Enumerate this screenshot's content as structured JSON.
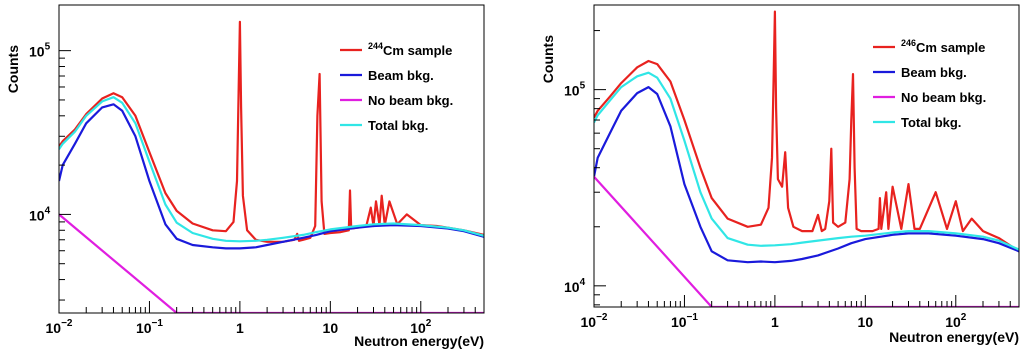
{
  "chart_data": [
    {
      "type": "line",
      "title": "",
      "xlabel": "Neutron energy(eV)",
      "ylabel": "Counts",
      "log_x": true,
      "log_y": true,
      "xlim": [
        0.01,
        500
      ],
      "ylim": [
        2500,
        190000
      ],
      "x_ticks": [
        {
          "v": 0.01,
          "label": "10",
          "exp": "−2"
        },
        {
          "v": 0.1,
          "label": "10",
          "exp": "−1"
        },
        {
          "v": 1,
          "label": "1",
          "exp": ""
        },
        {
          "v": 10,
          "label": "10",
          "exp": ""
        },
        {
          "v": 100,
          "label": "10",
          "exp": "2"
        }
      ],
      "y_ticks": [
        {
          "v": 10000,
          "label": "10",
          "exp": "4"
        },
        {
          "v": 100000,
          "label": "10",
          "exp": "5"
        }
      ],
      "grid": false,
      "legend_position": "top-right",
      "series": [
        {
          "name": "Cm sample",
          "name_sup": "244",
          "color": "#e8221f",
          "x": [
            0.01,
            0.011,
            0.015,
            0.02,
            0.03,
            0.04,
            0.05,
            0.07,
            0.1,
            0.15,
            0.2,
            0.3,
            0.5,
            0.7,
            0.85,
            0.93,
            0.97,
            1.0,
            1.03,
            1.08,
            1.2,
            1.5,
            2,
            3,
            4,
            4.3,
            4.5,
            5,
            6,
            6.8,
            7.2,
            7.6,
            8.0,
            8.6,
            10,
            13,
            16,
            16.5,
            17,
            20,
            25,
            28,
            30,
            32,
            35,
            37,
            40,
            45,
            55,
            70,
            100,
            150,
            200,
            300,
            500
          ],
          "y": [
            26000,
            28000,
            33000,
            41000,
            51000,
            55000,
            52000,
            40000,
            24000,
            13500,
            10500,
            8800,
            8000,
            7900,
            9000,
            16000,
            60000,
            150000,
            45000,
            13000,
            8000,
            7000,
            6800,
            6800,
            7000,
            7600,
            6900,
            7000,
            7200,
            8500,
            40000,
            72000,
            12000,
            7600,
            7700,
            7800,
            8000,
            14000,
            8200,
            8300,
            8500,
            11000,
            8500,
            12000,
            8600,
            13000,
            8600,
            12000,
            8700,
            10000,
            8600,
            8500,
            8300,
            8000,
            7500
          ]
        },
        {
          "name": "Beam bkg.",
          "color": "#1a1adb",
          "x": [
            0.01,
            0.011,
            0.015,
            0.02,
            0.03,
            0.04,
            0.05,
            0.07,
            0.1,
            0.15,
            0.2,
            0.3,
            0.5,
            0.7,
            1,
            1.5,
            2,
            3,
            5,
            7,
            10,
            20,
            30,
            50,
            100,
            200,
            300,
            500
          ],
          "y": [
            16000,
            20000,
            27000,
            36000,
            45000,
            47000,
            43000,
            30000,
            16000,
            8700,
            7100,
            6500,
            6300,
            6200,
            6200,
            6300,
            6500,
            6800,
            7200,
            7500,
            7900,
            8300,
            8500,
            8600,
            8500,
            8200,
            7900,
            7300
          ]
        },
        {
          "name": "No beam bkg.",
          "color": "#e01ee0",
          "x": [
            0.01,
            0.2,
            0.21,
            500
          ],
          "y": [
            10000,
            2500,
            2500,
            2500
          ]
        },
        {
          "name": "Total bkg.",
          "color": "#30e6e6",
          "x": [
            0.01,
            0.011,
            0.015,
            0.02,
            0.03,
            0.04,
            0.05,
            0.07,
            0.1,
            0.15,
            0.2,
            0.3,
            0.5,
            0.7,
            1,
            1.5,
            2,
            3,
            5,
            7,
            10,
            20,
            30,
            50,
            100,
            200,
            300,
            500
          ],
          "y": [
            25000,
            27000,
            32000,
            40000,
            49000,
            52000,
            48000,
            36000,
            21000,
            11500,
            8900,
            7700,
            7100,
            6900,
            6850,
            6900,
            7000,
            7200,
            7500,
            7800,
            8100,
            8500,
            8700,
            8800,
            8600,
            8300,
            8000,
            7400
          ]
        }
      ]
    },
    {
      "type": "line",
      "title": "",
      "xlabel": "Neutron energy(eV)",
      "ylabel": "Counts",
      "log_x": true,
      "log_y": true,
      "xlim": [
        0.01,
        500
      ],
      "ylim": [
        7800,
        270000
      ],
      "x_ticks": [
        {
          "v": 0.01,
          "label": "10",
          "exp": "−2"
        },
        {
          "v": 0.1,
          "label": "10",
          "exp": "−1"
        },
        {
          "v": 1,
          "label": "1",
          "exp": ""
        },
        {
          "v": 10,
          "label": "10",
          "exp": ""
        },
        {
          "v": 100,
          "label": "10",
          "exp": "2"
        }
      ],
      "y_ticks": [
        {
          "v": 10000,
          "label": "10",
          "exp": "4"
        },
        {
          "v": 100000,
          "label": "10",
          "exp": "5"
        }
      ],
      "grid": false,
      "legend_position": "top-right",
      "series": [
        {
          "name": "Cm sample",
          "name_sup": "246",
          "color": "#e8221f",
          "x": [
            0.01,
            0.011,
            0.015,
            0.02,
            0.03,
            0.04,
            0.05,
            0.07,
            0.1,
            0.15,
            0.2,
            0.3,
            0.5,
            0.7,
            0.85,
            0.93,
            0.97,
            1.0,
            1.03,
            1.08,
            1.2,
            1.3,
            1.4,
            1.6,
            2,
            2.6,
            3.0,
            3.3,
            3.6,
            4.0,
            4.2,
            4.4,
            5,
            6,
            6.7,
            7.0,
            7.3,
            7.6,
            8.0,
            9,
            12,
            14,
            14.5,
            15,
            17,
            18,
            20,
            25,
            30,
            35,
            40,
            60,
            80,
            100,
            120,
            150,
            200,
            300,
            500
          ],
          "y": [
            72000,
            78000,
            92000,
            108000,
            130000,
            140000,
            135000,
            110000,
            70000,
            40000,
            28000,
            22000,
            20000,
            20500,
            25000,
            45000,
            120000,
            250000,
            80000,
            35000,
            32000,
            48000,
            25000,
            20000,
            19000,
            19000,
            23000,
            19000,
            19500,
            27000,
            50000,
            21000,
            20000,
            21000,
            35000,
            70000,
            120000,
            40000,
            19500,
            19000,
            19000,
            19500,
            28000,
            19500,
            30000,
            19500,
            32000,
            19500,
            33000,
            19500,
            19500,
            30000,
            19500,
            27000,
            19000,
            22000,
            19000,
            17500,
            15000
          ]
        },
        {
          "name": "Beam bkg.",
          "color": "#1a1adb",
          "x": [
            0.01,
            0.011,
            0.015,
            0.02,
            0.03,
            0.04,
            0.05,
            0.07,
            0.1,
            0.15,
            0.2,
            0.3,
            0.5,
            0.7,
            1,
            1.5,
            2,
            3,
            5,
            7,
            10,
            20,
            30,
            50,
            100,
            200,
            300,
            500
          ],
          "y": [
            36000,
            45000,
            60000,
            78000,
            96000,
            103000,
            95000,
            65000,
            33000,
            20000,
            15000,
            13500,
            13200,
            13300,
            13200,
            13400,
            13700,
            14300,
            15500,
            16500,
            17300,
            18200,
            18500,
            18500,
            18000,
            17300,
            16500,
            15000
          ]
        },
        {
          "name": "No beam bkg.",
          "color": "#e01ee0",
          "x": [
            0.01,
            0.2,
            0.21,
            500
          ],
          "y": [
            36000,
            7800,
            7800,
            7800
          ]
        },
        {
          "name": "Total bkg.",
          "color": "#30e6e6",
          "x": [
            0.01,
            0.011,
            0.015,
            0.02,
            0.03,
            0.04,
            0.05,
            0.07,
            0.1,
            0.15,
            0.2,
            0.3,
            0.5,
            0.7,
            1,
            1.5,
            2,
            3,
            5,
            7,
            10,
            20,
            30,
            50,
            100,
            200,
            300,
            500
          ],
          "y": [
            68000,
            74000,
            88000,
            103000,
            117000,
            122000,
            115000,
            90000,
            55000,
            30000,
            22000,
            17500,
            16200,
            16000,
            16100,
            16300,
            16600,
            17000,
            17500,
            17800,
            18000,
            18700,
            19000,
            19000,
            18500,
            17800,
            17000,
            15300
          ]
        }
      ]
    }
  ]
}
